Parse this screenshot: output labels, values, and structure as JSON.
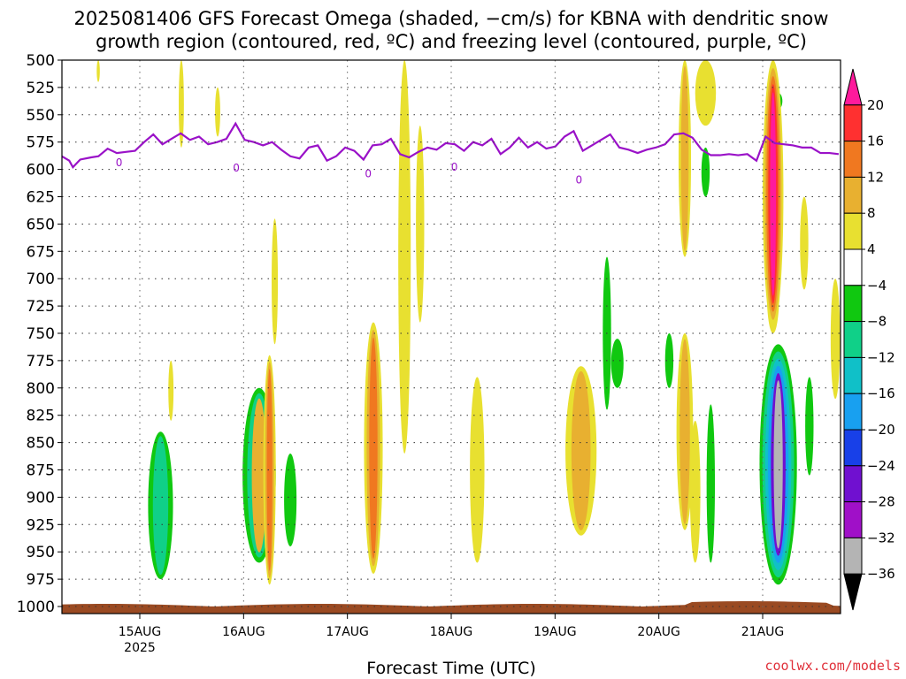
{
  "chart_data": {
    "type": "heatmap",
    "title_line1": "2025081406 GFS Forecast Omega (shaded, −cm/s) for KBNA with dendritic snow",
    "title_line2": "growth region (contoured, red, ºC) and freezing level (contoured, purple, ºC)",
    "xlabel": "Forecast Time (UTC)",
    "credit": "coolwx.com/models",
    "y_axis": {
      "scale": "pressure (mb)",
      "range": [
        1000,
        500
      ],
      "ticks": [
        "500",
        "525",
        "550",
        "575",
        "600",
        "625",
        "650",
        "675",
        "700",
        "725",
        "750",
        "775",
        "800",
        "825",
        "850",
        "875",
        "900",
        "925",
        "950",
        "975",
        "1000"
      ]
    },
    "x_axis": {
      "start": "2025-08-14 06Z",
      "end": "2025-08-21 18Z",
      "ticks": [
        {
          "label": "15AUG",
          "sub": "2025",
          "time": "2025-08-15 00Z"
        },
        {
          "label": "16AUG",
          "sub": "",
          "time": "2025-08-16 00Z"
        },
        {
          "label": "17AUG",
          "sub": "",
          "time": "2025-08-17 00Z"
        },
        {
          "label": "18AUG",
          "sub": "",
          "time": "2025-08-18 00Z"
        },
        {
          "label": "19AUG",
          "sub": "",
          "time": "2025-08-19 00Z"
        },
        {
          "label": "20AUG",
          "sub": "",
          "time": "2025-08-20 00Z"
        },
        {
          "label": "21AUG",
          "sub": "",
          "time": "2025-08-21 00Z"
        }
      ]
    },
    "colorbar": {
      "labels": [
        "20",
        "16",
        "12",
        "8",
        "4",
        "−4",
        "−8",
        "−12",
        "−16",
        "−20",
        "−24",
        "−28",
        "−32",
        "−36"
      ],
      "colors": [
        "#ff1a9c",
        "#ff3030",
        "#f07820",
        "#e8b030",
        "#e8e030",
        "#ffffff",
        "#10c810",
        "#10d088",
        "#10c0c8",
        "#18a0f0",
        "#1840e8",
        "#7010d0",
        "#a010c8",
        "#b4b4b4",
        "#000000"
      ]
    },
    "freezing_level_label": "0",
    "freezing_level_mb": [
      [
        0,
        588
      ],
      [
        0.2,
        592
      ],
      [
        0.3,
        598
      ],
      [
        0.5,
        591
      ],
      [
        0.8,
        589
      ],
      [
        1.0,
        588
      ],
      [
        1.25,
        581
      ],
      [
        1.5,
        585
      ],
      [
        1.75,
        584
      ],
      [
        2.0,
        583
      ],
      [
        2.25,
        575
      ],
      [
        2.5,
        568
      ],
      [
        2.75,
        577
      ],
      [
        3.0,
        572
      ],
      [
        3.25,
        567
      ],
      [
        3.5,
        573
      ],
      [
        3.75,
        570
      ],
      [
        4.0,
        577
      ],
      [
        4.25,
        575
      ],
      [
        4.5,
        572
      ],
      [
        4.75,
        558
      ],
      [
        5.0,
        573
      ],
      [
        5.25,
        575
      ],
      [
        5.5,
        578
      ],
      [
        5.75,
        575
      ],
      [
        6.0,
        582
      ],
      [
        6.25,
        588
      ],
      [
        6.5,
        590
      ],
      [
        6.75,
        580
      ],
      [
        7.0,
        578
      ],
      [
        7.25,
        592
      ],
      [
        7.5,
        588
      ],
      [
        7.75,
        580
      ],
      [
        8.0,
        583
      ],
      [
        8.25,
        591
      ],
      [
        8.5,
        578
      ],
      [
        8.75,
        577
      ],
      [
        9.0,
        572
      ],
      [
        9.25,
        586
      ],
      [
        9.5,
        589
      ],
      [
        9.75,
        584
      ],
      [
        10.0,
        580
      ],
      [
        10.25,
        582
      ],
      [
        10.5,
        576
      ],
      [
        10.75,
        577
      ],
      [
        11.0,
        583
      ],
      [
        11.25,
        575
      ],
      [
        11.5,
        578
      ],
      [
        11.75,
        572
      ],
      [
        12.0,
        586
      ],
      [
        12.25,
        580
      ],
      [
        12.5,
        571
      ],
      [
        12.75,
        580
      ],
      [
        13.0,
        575
      ],
      [
        13.25,
        581
      ],
      [
        13.5,
        579
      ],
      [
        13.75,
        570
      ],
      [
        14.0,
        565
      ],
      [
        14.25,
        583
      ],
      [
        14.5,
        578
      ],
      [
        14.75,
        573
      ],
      [
        15.0,
        568
      ],
      [
        15.25,
        580
      ],
      [
        15.5,
        582
      ],
      [
        15.75,
        585
      ],
      [
        16.0,
        582
      ],
      [
        16.25,
        580
      ],
      [
        16.5,
        577
      ],
      [
        16.75,
        568
      ],
      [
        17.0,
        567
      ],
      [
        17.25,
        571
      ],
      [
        17.5,
        582
      ],
      [
        17.75,
        587
      ],
      [
        18.0,
        587
      ],
      [
        18.25,
        586
      ],
      [
        18.5,
        587
      ],
      [
        18.75,
        586
      ],
      [
        19.0,
        592
      ],
      [
        19.25,
        570
      ],
      [
        19.5,
        576
      ],
      [
        19.75,
        577
      ],
      [
        20.0,
        578
      ],
      [
        20.25,
        580
      ],
      [
        20.5,
        580
      ],
      [
        20.75,
        585
      ],
      [
        21.0,
        585
      ],
      [
        21.25,
        586
      ]
    ],
    "omega_regions": [
      {
        "t": 0.95,
        "p0": 840,
        "p1": 975,
        "w": 0.24,
        "levels": [
          "#10c810",
          "#10d088"
        ]
      },
      {
        "t": 1.05,
        "p0": 775,
        "p1": 830,
        "w": 0.05,
        "levels": [
          "#e8e030"
        ]
      },
      {
        "t": 0.35,
        "p0": 500,
        "p1": 520,
        "w": 0.03,
        "levels": [
          "#e8e030"
        ]
      },
      {
        "t": 1.15,
        "p0": 500,
        "p1": 580,
        "w": 0.05,
        "levels": [
          "#e8e030"
        ]
      },
      {
        "t": 1.5,
        "p0": 525,
        "p1": 570,
        "w": 0.05,
        "levels": [
          "#e8e030"
        ]
      },
      {
        "t": 1.9,
        "p0": 800,
        "p1": 960,
        "w": 0.32,
        "levels": [
          "#10c810",
          "#10d088",
          "#e8b030"
        ]
      },
      {
        "t": 2.0,
        "p0": 770,
        "p1": 980,
        "w": 0.12,
        "levels": [
          "#e8e030",
          "#e8b030",
          "#f07820"
        ]
      },
      {
        "t": 2.2,
        "p0": 860,
        "p1": 945,
        "w": 0.12,
        "levels": [
          "#10c810"
        ]
      },
      {
        "t": 2.05,
        "p0": 645,
        "p1": 760,
        "w": 0.06,
        "levels": [
          "#e8e030"
        ]
      },
      {
        "t": 3.0,
        "p0": 740,
        "p1": 970,
        "w": 0.18,
        "levels": [
          "#e8e030",
          "#e8b030",
          "#f07820"
        ]
      },
      {
        "t": 3.3,
        "p0": 500,
        "p1": 860,
        "w": 0.12,
        "levels": [
          "#e8e030"
        ]
      },
      {
        "t": 3.45,
        "p0": 560,
        "p1": 740,
        "w": 0.08,
        "levels": [
          "#e8e030"
        ]
      },
      {
        "t": 4.0,
        "p0": 790,
        "p1": 960,
        "w": 0.14,
        "levels": [
          "#e8e030"
        ]
      },
      {
        "t": 5.0,
        "p0": 780,
        "p1": 935,
        "w": 0.3,
        "levels": [
          "#e8e030",
          "#e8b030"
        ]
      },
      {
        "t": 5.25,
        "p0": 680,
        "p1": 820,
        "w": 0.08,
        "levels": [
          "#10c810"
        ]
      },
      {
        "t": 5.35,
        "p0": 755,
        "p1": 800,
        "w": 0.12,
        "levels": [
          "#10c810"
        ]
      },
      {
        "t": 5.85,
        "p0": 750,
        "p1": 800,
        "w": 0.08,
        "levels": [
          "#10c810"
        ]
      },
      {
        "t": 6.0,
        "p0": 500,
        "p1": 680,
        "w": 0.12,
        "levels": [
          "#e8e030",
          "#e8b030"
        ]
      },
      {
        "t": 6.2,
        "p0": 500,
        "p1": 560,
        "w": 0.2,
        "levels": [
          "#e8e030"
        ]
      },
      {
        "t": 6.2,
        "p0": 580,
        "p1": 625,
        "w": 0.08,
        "levels": [
          "#10c810"
        ]
      },
      {
        "t": 6.0,
        "p0": 750,
        "p1": 930,
        "w": 0.16,
        "levels": [
          "#e8e030",
          "#e8b030"
        ]
      },
      {
        "t": 6.1,
        "p0": 830,
        "p1": 960,
        "w": 0.1,
        "levels": [
          "#e8e030"
        ]
      },
      {
        "t": 6.25,
        "p0": 815,
        "p1": 960,
        "w": 0.08,
        "levels": [
          "#10c810"
        ]
      },
      {
        "t": 6.9,
        "p0": 530,
        "p1": 545,
        "w": 0.08,
        "levels": [
          "#10c810"
        ]
      },
      {
        "t": 6.85,
        "p0": 675,
        "p1": 750,
        "w": 0.12,
        "levels": [
          "#e8e030"
        ]
      },
      {
        "t": 6.9,
        "p0": 760,
        "p1": 980,
        "w": 0.36,
        "levels": [
          "#10c810",
          "#10d088",
          "#10c0c8",
          "#18a0f0",
          "#7010d0",
          "#b4b4b4"
        ]
      },
      {
        "t": 7.15,
        "p0": 625,
        "p1": 710,
        "w": 0.08,
        "levels": [
          "#e8e030"
        ]
      },
      {
        "t": 6.85,
        "p0": 500,
        "p1": 745,
        "w": 0.2,
        "levels": [
          "#e8e030",
          "#e8b030",
          "#f07820",
          "#ff3030",
          "#ff1a9c"
        ]
      },
      {
        "t": 7.2,
        "p0": 790,
        "p1": 880,
        "w": 0.08,
        "levels": [
          "#10c810"
        ]
      },
      {
        "t": 7.45,
        "p0": 700,
        "p1": 810,
        "w": 0.09,
        "levels": [
          "#e8e030"
        ]
      }
    ]
  }
}
